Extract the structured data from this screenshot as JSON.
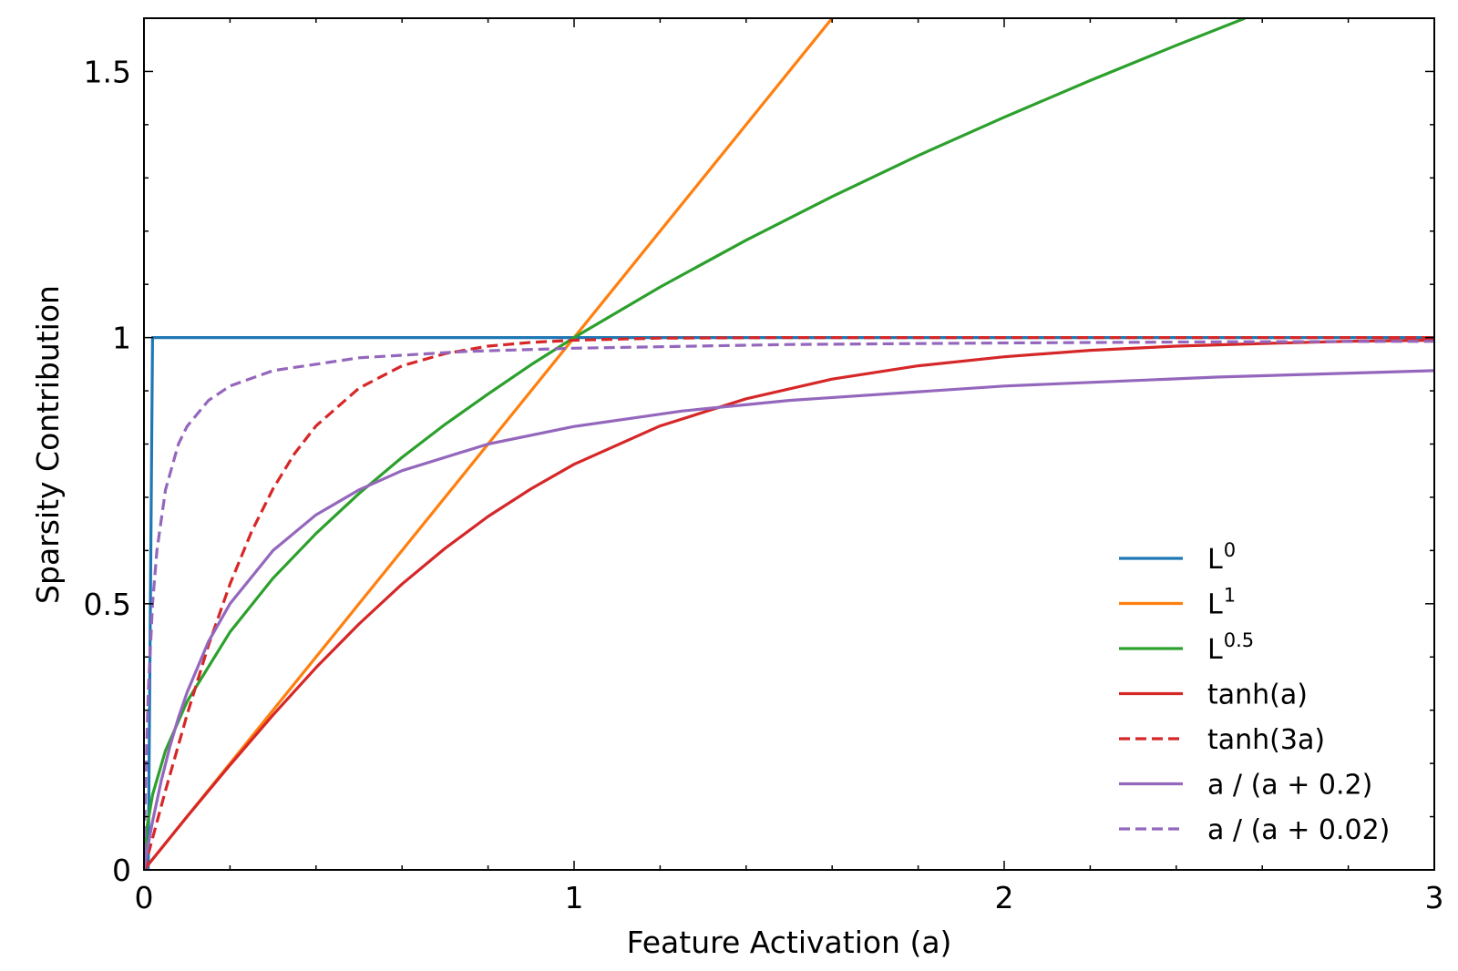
{
  "chart_data": {
    "type": "line",
    "xlabel": "Feature Activation (a)",
    "ylabel": "Sparsity Contribution",
    "xlim": [
      0,
      3
    ],
    "ylim": [
      0,
      1.6
    ],
    "x_ticks": [
      {
        "value": 0,
        "label": "0"
      },
      {
        "value": 1,
        "label": "1"
      },
      {
        "value": 2,
        "label": "2"
      },
      {
        "value": 3,
        "label": "3"
      }
    ],
    "y_ticks": [
      {
        "value": 0,
        "label": "0"
      },
      {
        "value": 0.5,
        "label": "0.5"
      },
      {
        "value": 1,
        "label": "1"
      },
      {
        "value": 1.5,
        "label": "1.5"
      }
    ],
    "grid": false,
    "legend_position": "lower-right",
    "series": [
      {
        "name": "L",
        "sup": "0",
        "color": "#1f77b4",
        "dash": "solid",
        "x": [
          0,
          0.01,
          0.02,
          3
        ],
        "y": [
          0,
          0,
          1,
          1
        ]
      },
      {
        "name": "L",
        "sup": "1",
        "color": "#ff7f0e",
        "dash": "solid",
        "x": [
          0,
          0.5,
          1,
          1.5,
          1.6
        ],
        "y": [
          0,
          0.5,
          1,
          1.5,
          1.6
        ]
      },
      {
        "name": "L",
        "sup": "0.5",
        "color": "#2ca02c",
        "dash": "solid",
        "x": [
          0,
          0.005,
          0.02,
          0.05,
          0.1,
          0.2,
          0.3,
          0.4,
          0.5,
          0.6,
          0.7,
          0.8,
          0.9,
          1,
          1.2,
          1.4,
          1.6,
          1.8,
          2,
          2.2,
          2.4,
          2.56
        ],
        "y": [
          0,
          0.071,
          0.141,
          0.224,
          0.316,
          0.447,
          0.548,
          0.632,
          0.707,
          0.775,
          0.837,
          0.894,
          0.949,
          1,
          1.095,
          1.183,
          1.265,
          1.342,
          1.414,
          1.483,
          1.549,
          1.6
        ]
      },
      {
        "name": "tanh(a)",
        "color": "#d62728",
        "dash": "solid",
        "x": [
          0,
          0.1,
          0.2,
          0.3,
          0.4,
          0.5,
          0.6,
          0.7,
          0.8,
          0.9,
          1,
          1.2,
          1.4,
          1.6,
          1.8,
          2,
          2.2,
          2.4,
          2.6,
          2.8,
          3
        ],
        "y": [
          0,
          0.1,
          0.197,
          0.291,
          0.38,
          0.462,
          0.537,
          0.604,
          0.664,
          0.716,
          0.762,
          0.834,
          0.885,
          0.922,
          0.947,
          0.964,
          0.976,
          0.984,
          0.989,
          0.993,
          0.995
        ]
      },
      {
        "name": "tanh(3a)",
        "color": "#d62728",
        "dash": "dashed",
        "x": [
          0,
          0.05,
          0.1,
          0.15,
          0.2,
          0.25,
          0.3,
          0.35,
          0.4,
          0.5,
          0.6,
          0.7,
          0.8,
          0.9,
          1,
          1.2,
          1.5,
          2,
          2.5,
          3
        ],
        "y": [
          0,
          0.149,
          0.291,
          0.422,
          0.537,
          0.635,
          0.716,
          0.782,
          0.834,
          0.905,
          0.947,
          0.97,
          0.984,
          0.991,
          0.995,
          0.999,
          1,
          1,
          1,
          1
        ]
      },
      {
        "name": "a / (a + 0.2)",
        "color": "#9467bd",
        "dash": "solid",
        "x": [
          0,
          0.01,
          0.02,
          0.04,
          0.06,
          0.08,
          0.1,
          0.15,
          0.2,
          0.3,
          0.4,
          0.5,
          0.6,
          0.8,
          1,
          1.25,
          1.5,
          2,
          2.5,
          3
        ],
        "y": [
          0,
          0.048,
          0.091,
          0.167,
          0.231,
          0.286,
          0.333,
          0.429,
          0.5,
          0.6,
          0.667,
          0.714,
          0.75,
          0.8,
          0.833,
          0.862,
          0.882,
          0.909,
          0.926,
          0.938
        ]
      },
      {
        "name": "a / (a + 0.02)",
        "color": "#9467bd",
        "dash": "dashed",
        "x": [
          0,
          0.002,
          0.005,
          0.01,
          0.02,
          0.03,
          0.05,
          0.08,
          0.1,
          0.15,
          0.2,
          0.3,
          0.5,
          0.75,
          1,
          1.5,
          2,
          2.5,
          3
        ],
        "y": [
          0,
          0.091,
          0.2,
          0.333,
          0.5,
          0.6,
          0.714,
          0.8,
          0.833,
          0.882,
          0.909,
          0.938,
          0.962,
          0.974,
          0.98,
          0.987,
          0.99,
          0.992,
          0.993
        ]
      }
    ]
  }
}
